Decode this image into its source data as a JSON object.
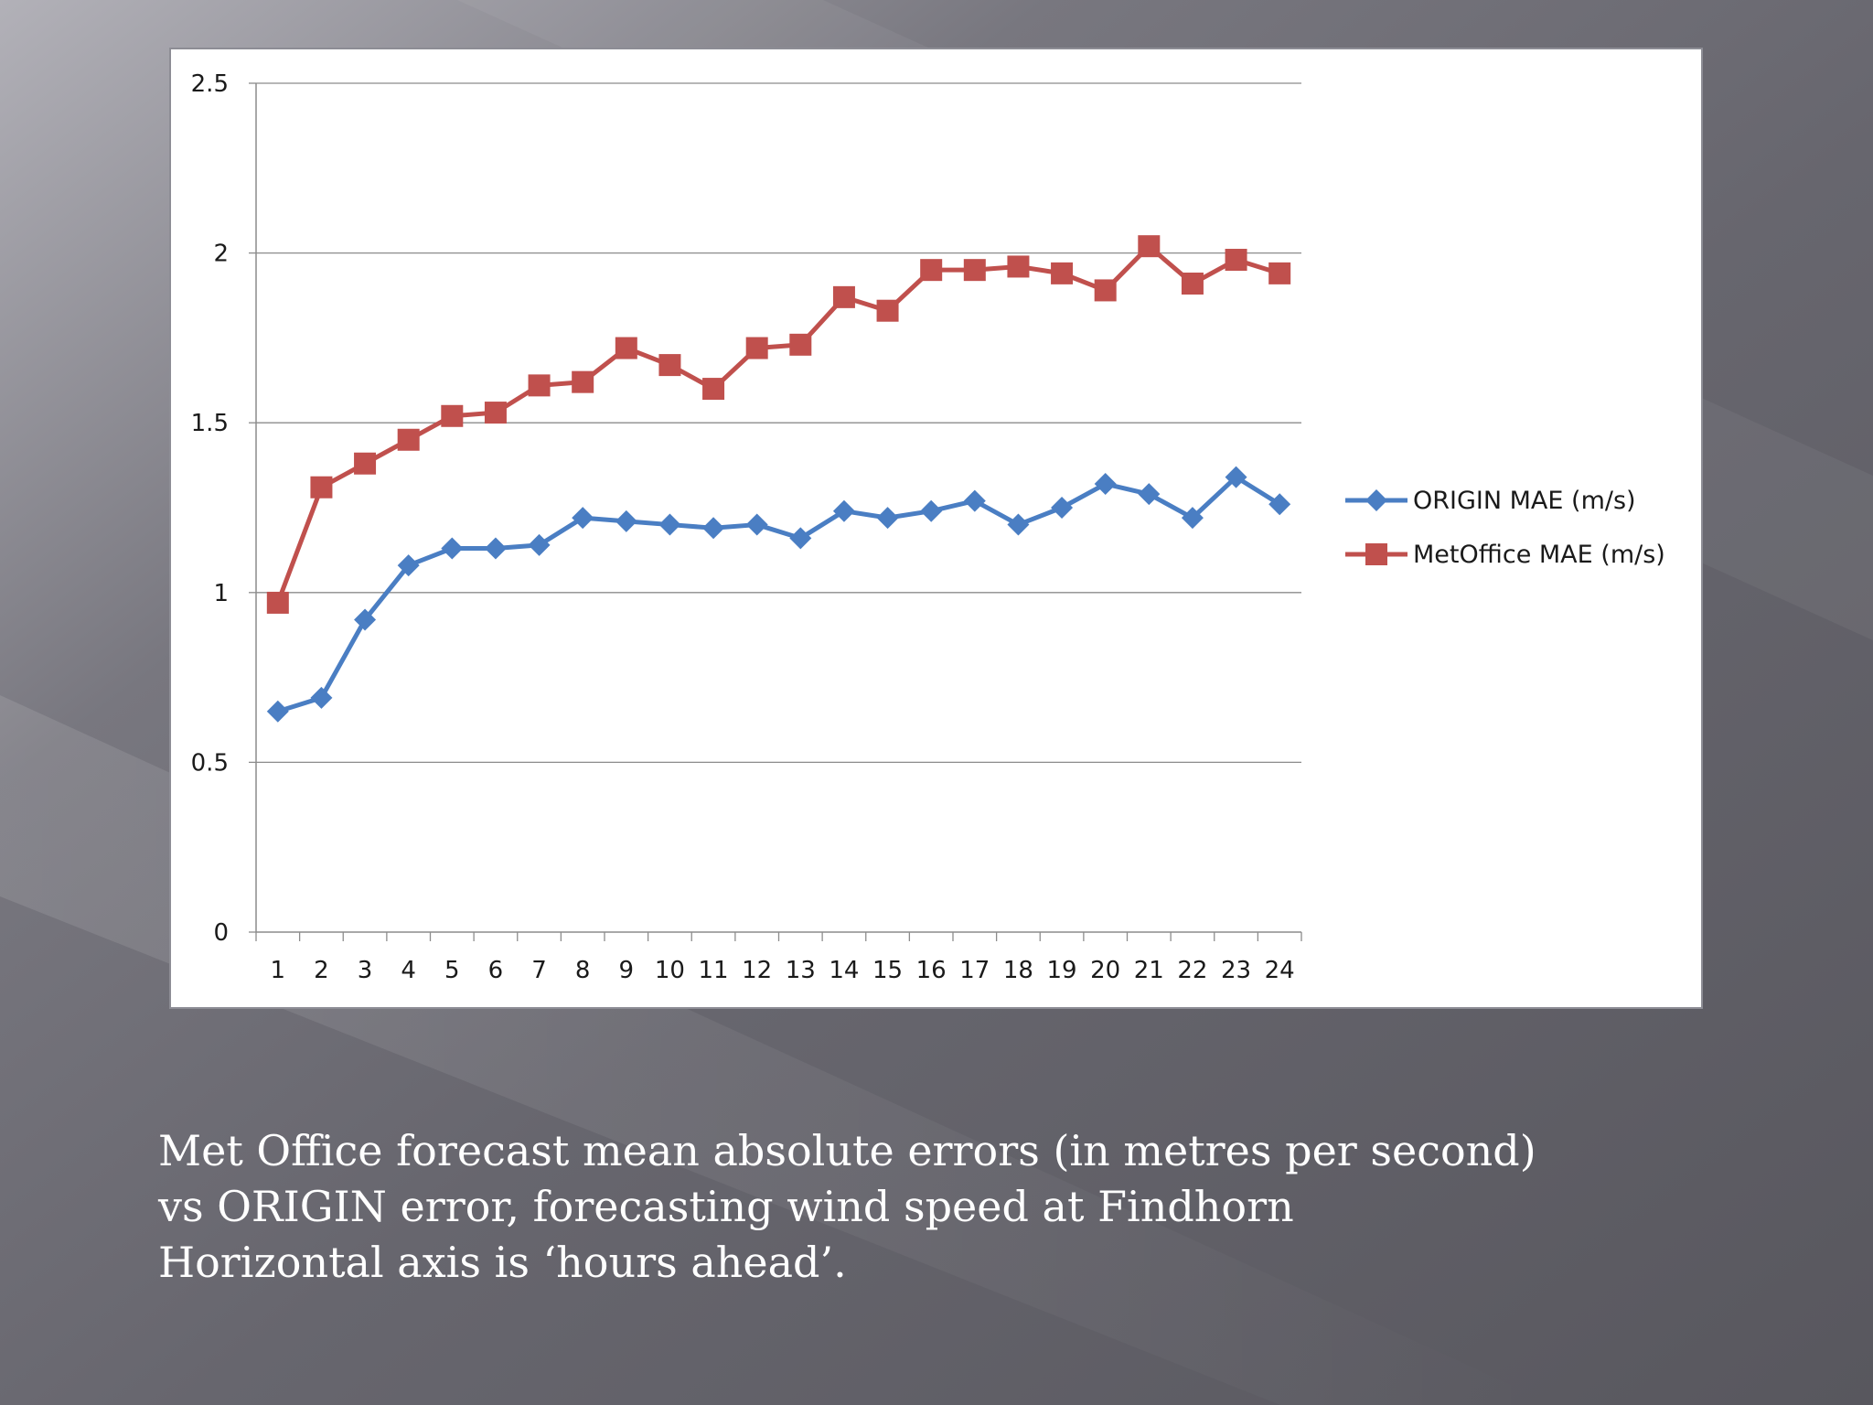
{
  "colors": {
    "slide_background": "#5b5a62",
    "chart_background": "#ffffff",
    "gridline": "#8c8c8c",
    "origin_series": "#4a7ec3",
    "metoffice_series": "#c0504d",
    "caption_text": "#ffffff"
  },
  "chart_data": {
    "type": "line",
    "title": "",
    "xlabel": "",
    "ylabel": "",
    "x": [
      1,
      2,
      3,
      4,
      5,
      6,
      7,
      8,
      9,
      10,
      11,
      12,
      13,
      14,
      15,
      16,
      17,
      18,
      19,
      20,
      21,
      22,
      23,
      24
    ],
    "ylim": [
      0,
      2.5
    ],
    "yticks": [
      "0",
      "0.5",
      "1",
      "1.5",
      "2",
      "2.5"
    ],
    "grid": true,
    "legend_position": "right",
    "series": [
      {
        "name": "ORIGIN MAE (m/s)",
        "marker": "diamond",
        "color": "#4a7ec3",
        "values": [
          0.65,
          0.69,
          0.92,
          1.08,
          1.13,
          1.13,
          1.14,
          1.22,
          1.21,
          1.2,
          1.19,
          1.2,
          1.16,
          1.24,
          1.22,
          1.24,
          1.27,
          1.2,
          1.25,
          1.32,
          1.29,
          1.22,
          1.34,
          1.26
        ]
      },
      {
        "name": "MetOffice MAE (m/s)",
        "marker": "square",
        "color": "#c0504d",
        "values": [
          0.97,
          1.31,
          1.38,
          1.45,
          1.52,
          1.53,
          1.61,
          1.62,
          1.72,
          1.67,
          1.6,
          1.72,
          1.73,
          1.87,
          1.83,
          1.95,
          1.95,
          1.96,
          1.94,
          1.89,
          2.02,
          1.91,
          1.98,
          1.94
        ]
      }
    ]
  },
  "caption": {
    "line1": "Met Office forecast mean absolute errors (in metres per second)",
    "line2": "vs ORIGIN error, forecasting wind speed at Findhorn",
    "line3": "Horizontal axis is ‘hours ahead’."
  }
}
